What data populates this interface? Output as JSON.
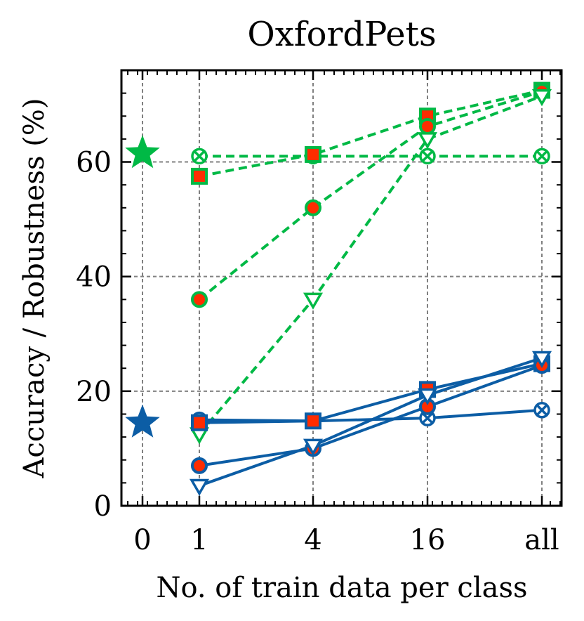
{
  "chart_data": {
    "type": "line",
    "title": "OxfordPets",
    "xlabel": "No. of train data per class",
    "ylabel": "Accuracy / Robustness (%)",
    "categories": [
      "0",
      "1",
      "4",
      "16",
      "all"
    ],
    "ylim": [
      0,
      76
    ],
    "yticks": [
      0,
      20,
      40,
      60
    ],
    "grid": true,
    "zero_shot": [
      {
        "name": "green-zero-shot",
        "color": "#00B945",
        "x": "0",
        "value": 61.5
      },
      {
        "name": "blue-zero-shot",
        "color": "#0C5DA5",
        "x": "0",
        "value": 14.5
      }
    ],
    "series": [
      {
        "name": "green-x",
        "group": "green",
        "color": "#00B945",
        "dash": true,
        "marker": "x-circle",
        "values": [
          null,
          61,
          61,
          61,
          61
        ]
      },
      {
        "name": "green-square",
        "group": "green",
        "color": "#00B945",
        "dash": true,
        "marker": "square",
        "values": [
          null,
          57.5,
          61.3,
          68,
          72.5
        ]
      },
      {
        "name": "green-circle",
        "group": "green",
        "color": "#00B945",
        "dash": true,
        "marker": "circle",
        "values": [
          null,
          36,
          52,
          66.2,
          72.3
        ]
      },
      {
        "name": "green-triangle",
        "group": "green",
        "color": "#00B945",
        "dash": true,
        "marker": "triangle",
        "values": [
          null,
          12.5,
          36,
          64,
          71.5
        ]
      },
      {
        "name": "blue-x",
        "group": "blue",
        "color": "#0C5DA5",
        "dash": false,
        "marker": "x-circle",
        "values": [
          null,
          15,
          14.8,
          15.3,
          16.7
        ]
      },
      {
        "name": "blue-square",
        "group": "blue",
        "color": "#0C5DA5",
        "dash": false,
        "marker": "square",
        "values": [
          null,
          14.5,
          14.8,
          20.3,
          24.8
        ]
      },
      {
        "name": "blue-circle",
        "group": "blue",
        "color": "#0C5DA5",
        "dash": false,
        "marker": "circle",
        "values": [
          null,
          7,
          10,
          17.3,
          24.5
        ]
      },
      {
        "name": "blue-triangle",
        "group": "blue",
        "color": "#0C5DA5",
        "dash": false,
        "marker": "triangle",
        "values": [
          null,
          3.5,
          10.5,
          19.3,
          25.8
        ]
      }
    ],
    "fill_color": "#FF2C00"
  }
}
